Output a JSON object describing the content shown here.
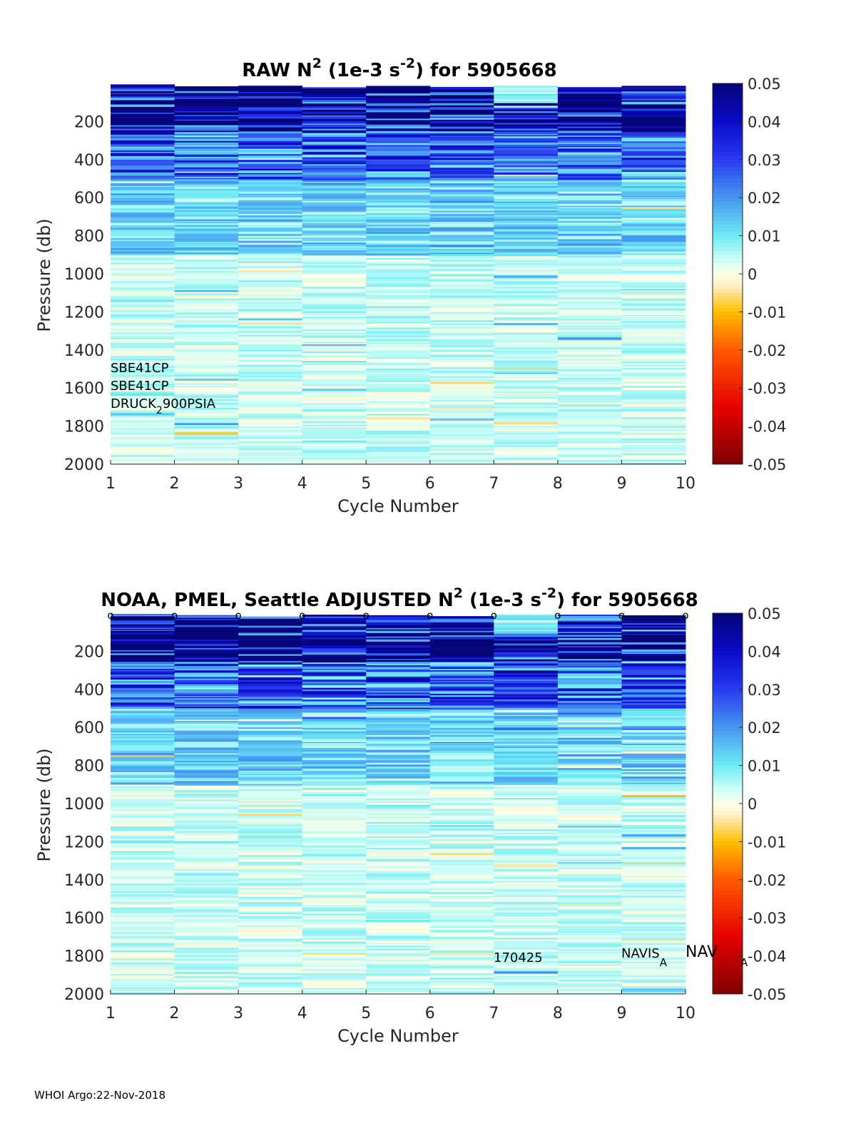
{
  "chart_data": [
    {
      "type": "heatmap",
      "title_prefix": "RAW N",
      "title_sup": "2",
      "title_mid": " (1e-3 s",
      "title_sup2": "-2",
      "title_suffix": ") for 5905668",
      "xlabel": "Cycle Number",
      "ylabel": "Pressure (db)",
      "xticks": [
        "1",
        "2",
        "3",
        "4",
        "5",
        "6",
        "7",
        "8",
        "9",
        "10"
      ],
      "xlim": [
        1,
        10
      ],
      "yticks": [
        "200",
        "400",
        "600",
        "800",
        "1000",
        "1200",
        "1400",
        "1600",
        "1800",
        "2000"
      ],
      "ylim": [
        0,
        2000
      ],
      "colorbar_ticks": [
        "0.05",
        "0.04",
        "0.03",
        "0.02",
        "0.01",
        "0",
        "-0.01",
        "-0.02",
        "-0.03",
        "-0.04",
        "-0.05"
      ],
      "clim": [
        -0.05,
        0.05
      ],
      "profile_bands_db": [
        [
          0,
          250,
          0.045
        ],
        [
          250,
          500,
          0.025
        ],
        [
          500,
          900,
          0.012
        ],
        [
          900,
          2000,
          0.005
        ]
      ],
      "annotations": [
        "SBE41CP",
        "SBE41CP",
        "DRUCK",
        "2",
        "900PSIA"
      ],
      "seed": 11
    },
    {
      "type": "heatmap",
      "title_prefix": "NOAA, PMEL, Seattle  ADJUSTED N",
      "title_sup": "2",
      "title_mid": " (1e-3 s",
      "title_sup2": "-2",
      "title_suffix": ") for 5905668",
      "xlabel": "Cycle Number",
      "ylabel": "Pressure (db)",
      "xticks": [
        "1",
        "2",
        "3",
        "4",
        "5",
        "6",
        "7",
        "8",
        "9",
        "10"
      ],
      "xlim": [
        1,
        10
      ],
      "yticks": [
        "200",
        "400",
        "600",
        "800",
        "1000",
        "1200",
        "1400",
        "1600",
        "1800",
        "2000"
      ],
      "ylim": [
        0,
        2000
      ],
      "colorbar_ticks": [
        "0.05",
        "0.04",
        "0.03",
        "0.02",
        "0.01",
        "0",
        "-0.01",
        "-0.02",
        "-0.03",
        "-0.04",
        "-0.05"
      ],
      "clim": [
        -0.05,
        0.05
      ],
      "profile_bands_db": [
        [
          0,
          250,
          0.045
        ],
        [
          250,
          500,
          0.025
        ],
        [
          500,
          900,
          0.012
        ],
        [
          900,
          2000,
          0.005
        ]
      ],
      "qc_marker": "o",
      "annotations": [
        "170425",
        "NAVIS",
        "A",
        "NAV",
        "A"
      ],
      "seed": 23
    }
  ],
  "footer": "WHOI Argo:22-Nov-2018"
}
